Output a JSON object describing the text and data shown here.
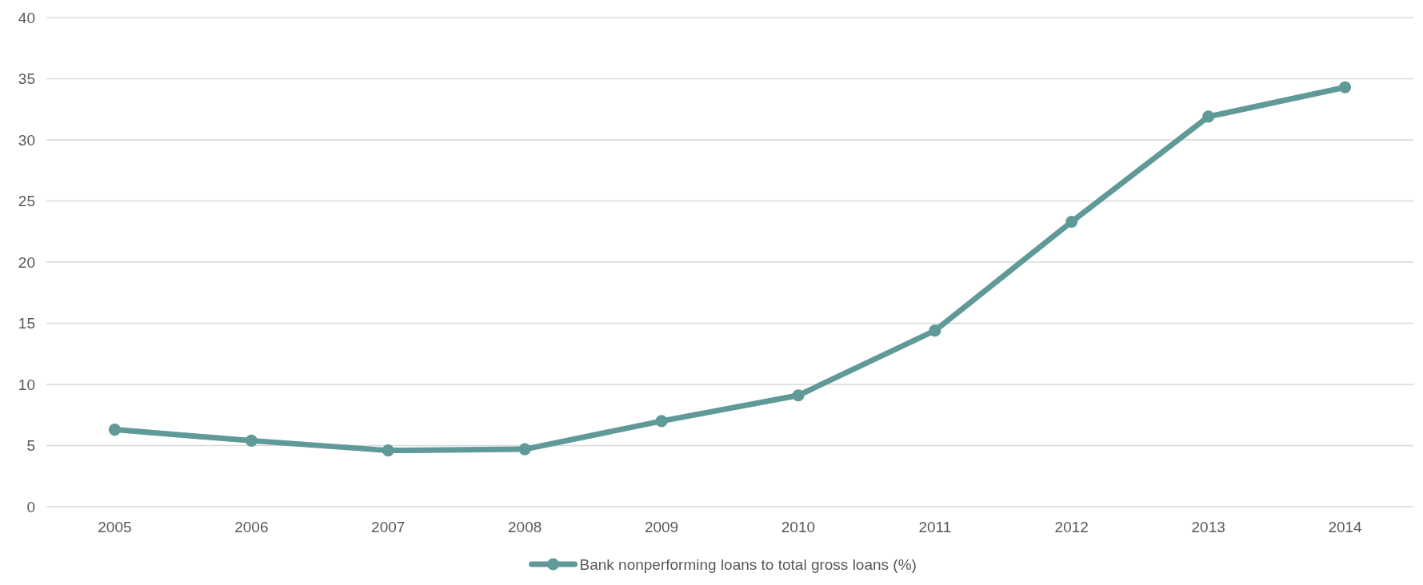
{
  "chart_data": {
    "type": "line",
    "categories": [
      "2005",
      "2006",
      "2007",
      "2008",
      "2009",
      "2010",
      "2011",
      "2012",
      "2013",
      "2014"
    ],
    "series": [
      {
        "name": "Bank nonperforming loans to total gross loans (%)",
        "color": "#5f9a98",
        "values": [
          6.3,
          5.4,
          4.6,
          4.7,
          7.0,
          9.1,
          14.4,
          23.3,
          31.9,
          34.3
        ]
      }
    ],
    "ylim": [
      0,
      40
    ],
    "yticks": [
      0,
      5,
      10,
      15,
      20,
      25,
      30,
      35,
      40
    ],
    "grid": "y",
    "legend": "bottom",
    "marker": "circle",
    "line_style": "solid"
  }
}
